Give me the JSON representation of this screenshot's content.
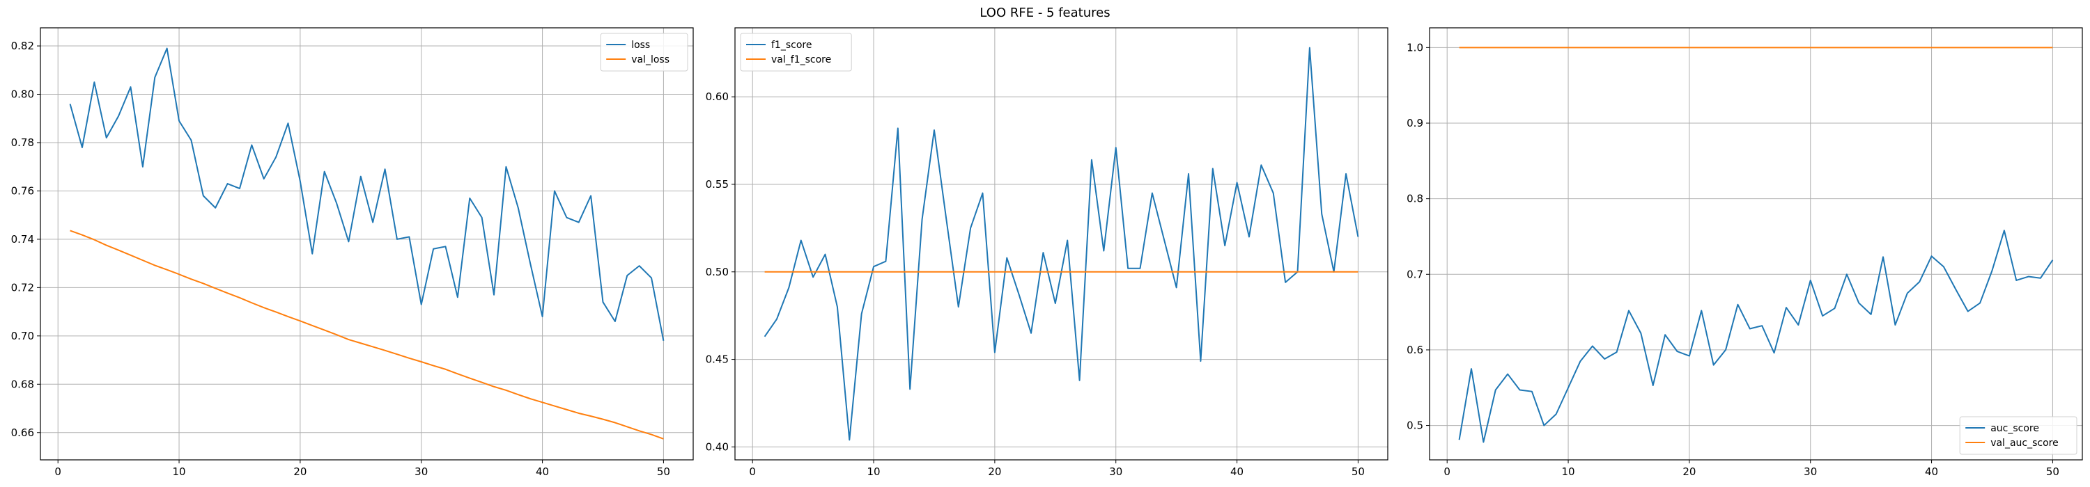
{
  "suptitle": "LOO RFE - 5 features",
  "colors": {
    "series1": "#1f77b4",
    "series2": "#ff7f0e",
    "grid": "#b0b0b0"
  },
  "chart_data": [
    {
      "type": "line",
      "title": "",
      "xlabel": "",
      "ylabel": "",
      "xlim": [
        -1.45,
        52.45
      ],
      "ylim": [
        0.6487,
        0.8275
      ],
      "xticks": [
        0,
        10,
        20,
        30,
        40,
        50
      ],
      "yticks": [
        0.66,
        0.68,
        0.7,
        0.72,
        0.74,
        0.76,
        0.78,
        0.8,
        0.82
      ],
      "ytick_labels": [
        "0.66",
        "0.68",
        "0.70",
        "0.72",
        "0.74",
        "0.76",
        "0.78",
        "0.80",
        "0.82"
      ],
      "grid": true,
      "legend": "top-right",
      "x": [
        1,
        2,
        3,
        4,
        5,
        6,
        7,
        8,
        9,
        10,
        11,
        12,
        13,
        14,
        15,
        16,
        17,
        18,
        19,
        20,
        21,
        22,
        23,
        24,
        25,
        26,
        27,
        28,
        29,
        30,
        31,
        32,
        33,
        34,
        35,
        36,
        37,
        38,
        39,
        40,
        41,
        42,
        43,
        44,
        45,
        46,
        47,
        48,
        49,
        50
      ],
      "series": [
        {
          "name": "loss",
          "values": [
            0.796,
            0.778,
            0.805,
            0.782,
            0.791,
            0.803,
            0.77,
            0.807,
            0.819,
            0.789,
            0.781,
            0.758,
            0.753,
            0.763,
            0.761,
            0.779,
            0.765,
            0.774,
            0.788,
            0.764,
            0.734,
            0.768,
            0.755,
            0.739,
            0.766,
            0.747,
            0.769,
            0.74,
            0.741,
            0.713,
            0.736,
            0.737,
            0.716,
            0.757,
            0.749,
            0.717,
            0.77,
            0.753,
            0.73,
            0.708,
            0.76,
            0.749,
            0.747,
            0.758,
            0.714,
            0.706,
            0.725,
            0.729,
            0.724,
            0.698
          ]
        },
        {
          "name": "val_loss",
          "values": [
            0.7436,
            0.7418,
            0.7398,
            0.7375,
            0.7355,
            0.7334,
            0.7313,
            0.7292,
            0.7274,
            0.7255,
            0.7235,
            0.7217,
            0.7197,
            0.7177,
            0.7158,
            0.7137,
            0.7117,
            0.7099,
            0.708,
            0.7062,
            0.7043,
            0.7024,
            0.7005,
            0.6985,
            0.697,
            0.6955,
            0.694,
            0.6924,
            0.6908,
            0.6893,
            0.6877,
            0.6862,
            0.6843,
            0.6825,
            0.6808,
            0.679,
            0.6775,
            0.6757,
            0.674,
            0.6725,
            0.671,
            0.6695,
            0.668,
            0.6668,
            0.6655,
            0.6641,
            0.6624,
            0.6607,
            0.6592,
            0.6574
          ]
        }
      ]
    },
    {
      "type": "line",
      "title": "",
      "xlabel": "",
      "ylabel": "",
      "xlim": [
        -1.45,
        52.45
      ],
      "ylim": [
        0.3926,
        0.6394
      ],
      "xticks": [
        0,
        10,
        20,
        30,
        40,
        50
      ],
      "yticks": [
        0.4,
        0.45,
        0.5,
        0.55,
        0.6
      ],
      "ytick_labels": [
        "0.40",
        "0.45",
        "0.50",
        "0.55",
        "0.60"
      ],
      "grid": true,
      "legend": "top-left",
      "x": [
        1,
        2,
        3,
        4,
        5,
        6,
        7,
        8,
        9,
        10,
        11,
        12,
        13,
        14,
        15,
        16,
        17,
        18,
        19,
        20,
        21,
        22,
        23,
        24,
        25,
        26,
        27,
        28,
        29,
        30,
        31,
        32,
        33,
        34,
        35,
        36,
        37,
        38,
        39,
        40,
        41,
        42,
        43,
        44,
        45,
        46,
        47,
        48,
        49,
        50
      ],
      "series": [
        {
          "name": "f1_score",
          "values": [
            0.463,
            0.473,
            0.491,
            0.518,
            0.497,
            0.51,
            0.48,
            0.404,
            0.476,
            0.503,
            0.506,
            0.582,
            0.433,
            0.53,
            0.581,
            0.53,
            0.48,
            0.525,
            0.545,
            0.454,
            0.508,
            0.487,
            0.465,
            0.511,
            0.482,
            0.518,
            0.438,
            0.564,
            0.512,
            0.571,
            0.502,
            0.502,
            0.545,
            0.518,
            0.491,
            0.556,
            0.449,
            0.559,
            0.515,
            0.551,
            0.52,
            0.561,
            0.545,
            0.494,
            0.5,
            0.628,
            0.533,
            0.5,
            0.556,
            0.52
          ]
        },
        {
          "name": "val_f1_score",
          "values": [
            0.5,
            0.5,
            0.5,
            0.5,
            0.5,
            0.5,
            0.5,
            0.5,
            0.5,
            0.5,
            0.5,
            0.5,
            0.5,
            0.5,
            0.5,
            0.5,
            0.5,
            0.5,
            0.5,
            0.5,
            0.5,
            0.5,
            0.5,
            0.5,
            0.5,
            0.5,
            0.5,
            0.5,
            0.5,
            0.5,
            0.5,
            0.5,
            0.5,
            0.5,
            0.5,
            0.5,
            0.5,
            0.5,
            0.5,
            0.5,
            0.5,
            0.5,
            0.5,
            0.5,
            0.5,
            0.5,
            0.5,
            0.5,
            0.5,
            0.5
          ]
        }
      ]
    },
    {
      "type": "line",
      "title": "",
      "xlabel": "",
      "ylabel": "",
      "xlim": [
        -1.45,
        52.45
      ],
      "ylim": [
        0.4545,
        1.0261
      ],
      "xticks": [
        0,
        10,
        20,
        30,
        40,
        50
      ],
      "yticks": [
        0.5,
        0.6,
        0.7,
        0.8,
        0.9,
        1.0
      ],
      "ytick_labels": [
        "0.5",
        "0.6",
        "0.7",
        "0.8",
        "0.9",
        "1.0"
      ],
      "grid": true,
      "legend": "bottom-right",
      "x": [
        1,
        2,
        3,
        4,
        5,
        6,
        7,
        8,
        9,
        10,
        11,
        12,
        13,
        14,
        15,
        16,
        17,
        18,
        19,
        20,
        21,
        22,
        23,
        24,
        25,
        26,
        27,
        28,
        29,
        30,
        31,
        32,
        33,
        34,
        35,
        36,
        37,
        38,
        39,
        40,
        41,
        42,
        43,
        44,
        45,
        46,
        47,
        48,
        49,
        50
      ],
      "series": [
        {
          "name": "auc_score",
          "values": [
            0.481,
            0.575,
            0.478,
            0.547,
            0.568,
            0.547,
            0.545,
            0.5,
            0.515,
            0.55,
            0.585,
            0.605,
            0.588,
            0.597,
            0.652,
            0.622,
            0.553,
            0.62,
            0.598,
            0.592,
            0.652,
            0.58,
            0.6,
            0.66,
            0.628,
            0.632,
            0.596,
            0.656,
            0.633,
            0.692,
            0.645,
            0.655,
            0.7,
            0.662,
            0.647,
            0.723,
            0.633,
            0.675,
            0.69,
            0.724,
            0.71,
            0.68,
            0.651,
            0.662,
            0.705,
            0.758,
            0.692,
            0.697,
            0.695,
            0.719
          ]
        },
        {
          "name": "val_auc_score",
          "values": [
            1.0,
            1.0,
            1.0,
            1.0,
            1.0,
            1.0,
            1.0,
            1.0,
            1.0,
            1.0,
            1.0,
            1.0,
            1.0,
            1.0,
            1.0,
            1.0,
            1.0,
            1.0,
            1.0,
            1.0,
            1.0,
            1.0,
            1.0,
            1.0,
            1.0,
            1.0,
            1.0,
            1.0,
            1.0,
            1.0,
            1.0,
            1.0,
            1.0,
            1.0,
            1.0,
            1.0,
            1.0,
            1.0,
            1.0,
            1.0,
            1.0,
            1.0,
            1.0,
            1.0,
            1.0,
            1.0,
            1.0,
            1.0,
            1.0,
            1.0
          ]
        }
      ]
    }
  ]
}
